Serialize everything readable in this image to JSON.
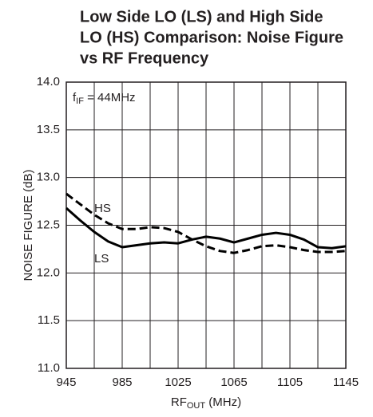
{
  "chart_data": {
    "type": "line",
    "title": [
      "Low Side LO (LS) and High Side",
      "LO (HS) Comparison: Noise Figure",
      "vs RF Frequency"
    ],
    "xlabel": [
      "RF",
      "OUT",
      " (MHz)"
    ],
    "ylabel": "NOISE FIGURE (dB)",
    "annotation": [
      "f",
      "IF",
      " = 44MHz"
    ],
    "x": [
      945,
      955,
      965,
      975,
      985,
      995,
      1005,
      1015,
      1025,
      1035,
      1045,
      1055,
      1065,
      1075,
      1085,
      1095,
      1105,
      1115,
      1125,
      1135,
      1145
    ],
    "series": [
      {
        "name": "LS",
        "color": "#000000",
        "dash": false,
        "values": [
          12.68,
          12.55,
          12.43,
          12.33,
          12.27,
          12.29,
          12.31,
          12.32,
          12.31,
          12.35,
          12.38,
          12.36,
          12.32,
          12.36,
          12.4,
          12.42,
          12.4,
          12.35,
          12.27,
          12.26,
          12.28
        ]
      },
      {
        "name": "HS",
        "color": "#000000",
        "dash": true,
        "values": [
          12.83,
          12.72,
          12.61,
          12.52,
          12.46,
          12.46,
          12.48,
          12.47,
          12.43,
          12.35,
          12.28,
          12.23,
          12.21,
          12.24,
          12.28,
          12.29,
          12.27,
          12.24,
          12.22,
          12.22,
          12.23
        ]
      }
    ],
    "xlim": [
      945,
      1145
    ],
    "xticks": [
      945,
      985,
      1025,
      1065,
      1105,
      1145
    ],
    "xminor_ticks": [
      965,
      1005,
      1045,
      1085,
      1125
    ],
    "ylim": [
      11,
      14
    ],
    "yticks": [
      {
        "value": 11,
        "label": "11.0"
      },
      {
        "value": 11.5,
        "label": "11.5"
      },
      {
        "value": 12,
        "label": "12.0"
      },
      {
        "value": 12.5,
        "label": "12.5"
      },
      {
        "value": 13,
        "label": "13.0"
      },
      {
        "value": 13.5,
        "label": "13.5"
      },
      {
        "value": 14,
        "label": "14.0"
      }
    ],
    "grid": true
  }
}
